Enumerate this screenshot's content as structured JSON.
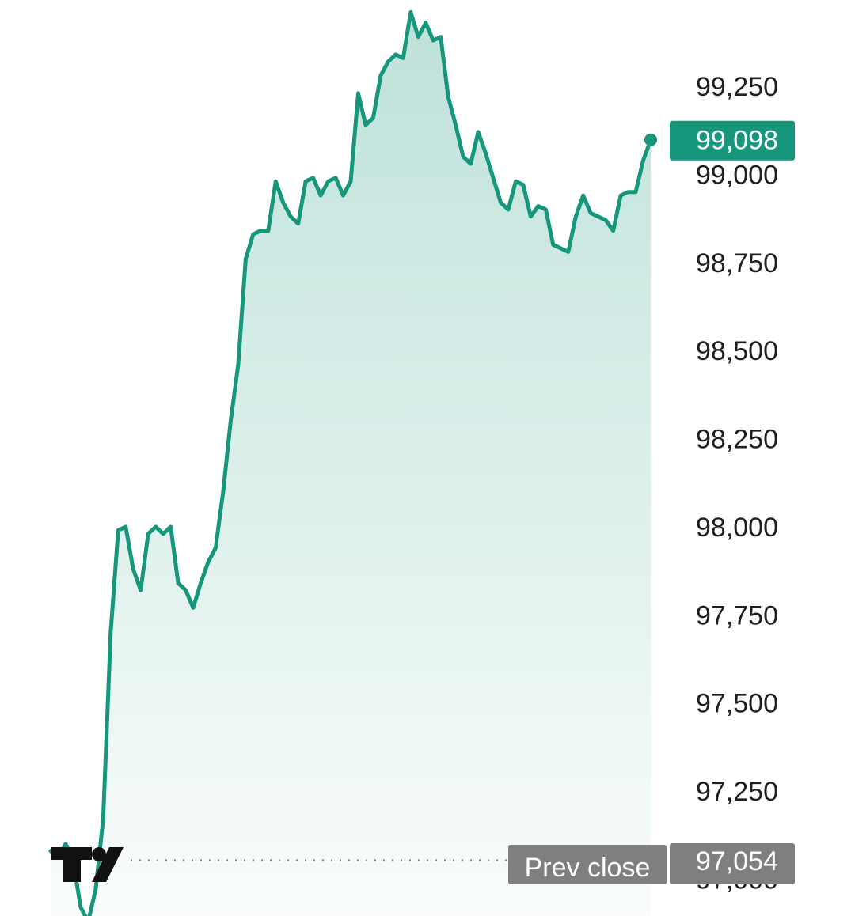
{
  "chart_data": {
    "type": "area",
    "title": "",
    "xlabel": "",
    "ylabel": "",
    "ylim": [
      97000,
      99400
    ],
    "y_ticks": [
      "99,250",
      "99,000",
      "98,750",
      "98,500",
      "98,250",
      "98,000",
      "97,750",
      "97,500",
      "97,250",
      "97,000"
    ],
    "y_tick_values": [
      99250,
      99000,
      98750,
      98500,
      98250,
      98000,
      97750,
      97500,
      97250,
      97000
    ],
    "grid": false,
    "series": [
      {
        "values": [
          97080,
          97060,
          97100,
          97050,
          96920,
          96880,
          96970,
          97170,
          97700,
          97990,
          98000,
          97880,
          97820,
          97980,
          98000,
          97980,
          98000,
          97840,
          97820,
          97770,
          97840,
          97900,
          97940,
          98100,
          98300,
          98460,
          98760,
          98830,
          98840,
          98840,
          98980,
          98920,
          98880,
          98860,
          98980,
          98990,
          98940,
          98980,
          98990,
          98940,
          98980,
          99230,
          99140,
          99160,
          99280,
          99320,
          99340,
          99330,
          99460,
          99390,
          99430,
          99380,
          99390,
          99220,
          99140,
          99050,
          99030,
          99120,
          99060,
          98990,
          98920,
          98900,
          98980,
          98970,
          98880,
          98910,
          98900,
          98800,
          98790,
          98780,
          98880,
          98940,
          98890,
          98880,
          98870,
          98840,
          98940,
          98950,
          98950,
          99040,
          99098
        ],
        "color": "#16967a"
      }
    ],
    "last_value": {
      "value": 99098,
      "label": "99,098"
    },
    "prev_close": {
      "label": "Prev close",
      "value": 97054,
      "value_label": "97,054"
    },
    "colors": {
      "line": "#16967a",
      "fill_top": "#16967a",
      "last_tag": "#16967a",
      "prev_tag": "#7f7f7f",
      "dots": "#8a8a8a"
    }
  },
  "logo": {
    "name": "tradingview-logo-icon"
  }
}
